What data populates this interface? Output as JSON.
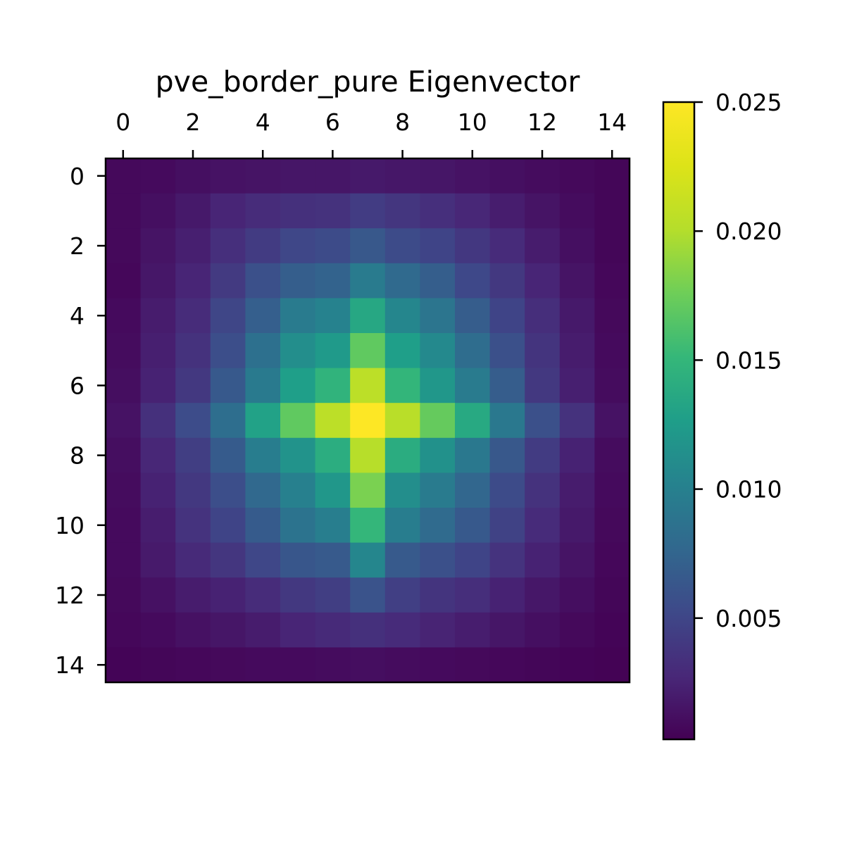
{
  "chart_data": {
    "type": "heatmap",
    "title": "pve_border_pure Eigenvector",
    "xlabel": "",
    "ylabel": "",
    "x_ticks": [
      "0",
      "2",
      "4",
      "6",
      "8",
      "10",
      "12",
      "14"
    ],
    "y_ticks": [
      "0",
      "2",
      "4",
      "6",
      "8",
      "10",
      "12",
      "14"
    ],
    "x_tick_values": [
      0,
      2,
      4,
      6,
      8,
      10,
      12,
      14
    ],
    "y_tick_values": [
      0,
      2,
      4,
      6,
      8,
      10,
      12,
      14
    ],
    "x_axis_position": "top",
    "colormap": "viridis",
    "vmin": 0.0003,
    "vmax": 0.025,
    "colorbar_ticks": [
      "0.005",
      "0.010",
      "0.015",
      "0.020",
      "0.025"
    ],
    "colorbar_tick_values": [
      0.005,
      0.01,
      0.015,
      0.02,
      0.025
    ],
    "values": [
      [
        0.0008,
        0.0009,
        0.0012,
        0.0014,
        0.0015,
        0.0016,
        0.0016,
        0.0018,
        0.0017,
        0.0016,
        0.0014,
        0.0012,
        0.001,
        0.0008,
        0.0006
      ],
      [
        0.0008,
        0.0012,
        0.0018,
        0.0026,
        0.0031,
        0.0034,
        0.0035,
        0.0043,
        0.0038,
        0.0033,
        0.0027,
        0.0021,
        0.0015,
        0.001,
        0.0006
      ],
      [
        0.0008,
        0.0015,
        0.0022,
        0.0033,
        0.0042,
        0.0051,
        0.0054,
        0.0064,
        0.0054,
        0.0049,
        0.0039,
        0.003,
        0.002,
        0.0012,
        0.0006
      ],
      [
        0.0007,
        0.0017,
        0.0026,
        0.0041,
        0.0058,
        0.0069,
        0.0073,
        0.0095,
        0.0079,
        0.0069,
        0.0052,
        0.004,
        0.0026,
        0.0015,
        0.0007
      ],
      [
        0.0009,
        0.002,
        0.0031,
        0.005,
        0.007,
        0.0095,
        0.0102,
        0.0135,
        0.0105,
        0.0089,
        0.0068,
        0.0049,
        0.0032,
        0.0018,
        0.0008
      ],
      [
        0.001,
        0.0022,
        0.0035,
        0.0056,
        0.0085,
        0.0112,
        0.0123,
        0.017,
        0.0127,
        0.0108,
        0.0082,
        0.0058,
        0.0037,
        0.002,
        0.0009
      ],
      [
        0.0011,
        0.0024,
        0.004,
        0.0065,
        0.0094,
        0.0127,
        0.0147,
        0.0205,
        0.0149,
        0.012,
        0.0095,
        0.0068,
        0.004,
        0.0022,
        0.001
      ],
      [
        0.0014,
        0.0034,
        0.0055,
        0.0083,
        0.013,
        0.017,
        0.0205,
        0.025,
        0.0203,
        0.0172,
        0.0137,
        0.0092,
        0.0058,
        0.0035,
        0.0014
      ],
      [
        0.0011,
        0.0027,
        0.0044,
        0.0067,
        0.0097,
        0.0117,
        0.0141,
        0.0202,
        0.014,
        0.0115,
        0.0092,
        0.0064,
        0.0042,
        0.0024,
        0.001
      ],
      [
        0.001,
        0.0024,
        0.004,
        0.0056,
        0.0078,
        0.01,
        0.012,
        0.018,
        0.0112,
        0.0095,
        0.0076,
        0.0054,
        0.0035,
        0.002,
        0.0009
      ],
      [
        0.0009,
        0.0021,
        0.0036,
        0.0049,
        0.0067,
        0.0088,
        0.0098,
        0.015,
        0.0097,
        0.008,
        0.0065,
        0.0047,
        0.003,
        0.0018,
        0.0008
      ],
      [
        0.0009,
        0.0019,
        0.0029,
        0.0038,
        0.0051,
        0.0063,
        0.0066,
        0.0105,
        0.0066,
        0.0058,
        0.0049,
        0.0036,
        0.0024,
        0.0015,
        0.0007
      ],
      [
        0.0008,
        0.0013,
        0.002,
        0.0024,
        0.0031,
        0.004,
        0.0044,
        0.006,
        0.0045,
        0.0037,
        0.0032,
        0.0024,
        0.0017,
        0.0011,
        0.0006
      ],
      [
        0.0007,
        0.0009,
        0.0013,
        0.0016,
        0.002,
        0.0026,
        0.0029,
        0.0034,
        0.003,
        0.0025,
        0.0021,
        0.0016,
        0.0012,
        0.0008,
        0.0005
      ],
      [
        0.0005,
        0.0006,
        0.0007,
        0.0008,
        0.0009,
        0.0009,
        0.001,
        0.0011,
        0.001,
        0.0009,
        0.0008,
        0.0007,
        0.0006,
        0.0005,
        0.0004
      ]
    ]
  }
}
